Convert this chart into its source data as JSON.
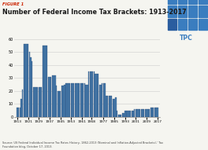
{
  "title": "Number of Federal Income Tax Brackets: 1913-2017",
  "figure_label": "FIGURE 1",
  "source_text": "Source: US Federal Individual Income Tax Rates History, 1862-2013 (Nominal and Inflation-Adjusted Brackets),’ Tax\nFoundation blog, October 17, 2013.",
  "bar_color": "#4a7faf",
  "bar_edge_color": "#1e3f6e",
  "background_color": "#f5f5f0",
  "ylim": [
    0,
    60
  ],
  "yticks": [
    0,
    10,
    20,
    30,
    40,
    50,
    60
  ],
  "years": [
    1913,
    1914,
    1915,
    1916,
    1917,
    1918,
    1919,
    1920,
    1921,
    1922,
    1923,
    1924,
    1925,
    1926,
    1927,
    1928,
    1929,
    1930,
    1931,
    1932,
    1933,
    1934,
    1935,
    1936,
    1937,
    1938,
    1939,
    1940,
    1941,
    1942,
    1943,
    1944,
    1945,
    1946,
    1947,
    1948,
    1949,
    1950,
    1951,
    1952,
    1953,
    1954,
    1955,
    1956,
    1957,
    1958,
    1959,
    1960,
    1961,
    1962,
    1963,
    1964,
    1965,
    1966,
    1967,
    1968,
    1969,
    1970,
    1971,
    1972,
    1973,
    1974,
    1975,
    1976,
    1977,
    1978,
    1979,
    1980,
    1981,
    1982,
    1983,
    1984,
    1985,
    1986,
    1987,
    1988,
    1989,
    1990,
    1991,
    1992,
    1993,
    1994,
    1995,
    1996,
    1997,
    1998,
    1999,
    2000,
    2001,
    2002,
    2003,
    2004,
    2005,
    2006,
    2007,
    2008,
    2009,
    2010,
    2011,
    2012,
    2013,
    2014,
    2015,
    2016,
    2017
  ],
  "values": [
    7,
    7,
    7,
    14,
    21,
    56,
    56,
    56,
    56,
    50,
    46,
    43,
    23,
    23,
    23,
    23,
    23,
    23,
    23,
    55,
    55,
    55,
    55,
    31,
    31,
    31,
    32,
    32,
    32,
    24,
    20,
    20,
    20,
    24,
    24,
    25,
    26,
    26,
    26,
    26,
    26,
    26,
    26,
    26,
    26,
    26,
    26,
    26,
    26,
    26,
    26,
    25,
    25,
    35,
    35,
    35,
    35,
    35,
    33,
    33,
    33,
    25,
    25,
    26,
    26,
    26,
    16,
    16,
    16,
    16,
    16,
    14,
    14,
    15,
    5,
    2,
    2,
    2,
    3,
    3,
    5,
    5,
    5,
    5,
    5,
    5,
    5,
    6,
    6,
    6,
    6,
    6,
    6,
    6,
    6,
    6,
    6,
    6,
    6,
    7,
    7,
    7,
    7,
    7,
    7
  ],
  "xtick_labels": [
    "1913",
    "1921",
    "1929",
    "1937",
    "1945",
    "1953",
    "1961",
    "1968",
    "1977",
    "1985",
    "1993",
    "2001",
    "2009",
    "2017"
  ],
  "xtick_positions": [
    1913,
    1921,
    1929,
    1937,
    1945,
    1953,
    1961,
    1968,
    1977,
    1985,
    1993,
    2001,
    2009,
    2017
  ],
  "tpc_logo_color": "#3a7dbf",
  "tpc_logo_dark": "#2a5d9f",
  "title_color": "#1a1a1a",
  "figure_label_color": "#cc2200"
}
